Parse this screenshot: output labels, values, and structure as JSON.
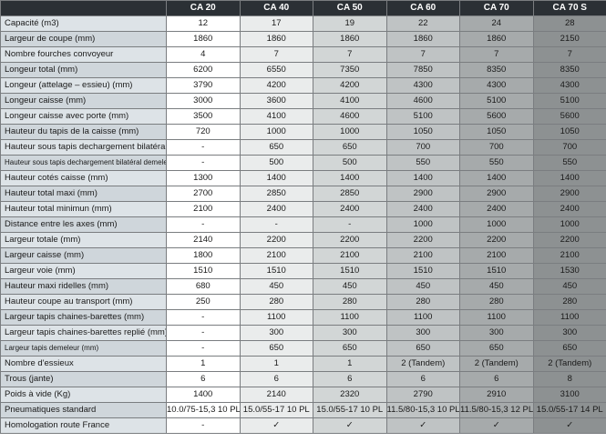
{
  "columns": [
    "CA 20",
    "CA 40",
    "CA 50",
    "CA 60",
    "CA 70",
    "CA 70 S"
  ],
  "rows": [
    {
      "label": "Capacité (m3)",
      "values": [
        "12",
        "17",
        "19",
        "22",
        "24",
        "28"
      ]
    },
    {
      "label": "Largeur de coupe (mm)",
      "values": [
        "1860",
        "1860",
        "1860",
        "1860",
        "1860",
        "2150"
      ]
    },
    {
      "label": "Nombre fourches convoyeur",
      "values": [
        "4",
        "7",
        "7",
        "7",
        "7",
        "7"
      ]
    },
    {
      "label": "Longeur total (mm)",
      "values": [
        "6200",
        "6550",
        "7350",
        "7850",
        "8350",
        "8350"
      ]
    },
    {
      "label": "Longeur (attelage – essieu) (mm)",
      "values": [
        "3790",
        "4200",
        "4200",
        "4300",
        "4300",
        "4300"
      ]
    },
    {
      "label": "Longeur caisse (mm)",
      "values": [
        "3000",
        "3600",
        "4100",
        "4600",
        "5100",
        "5100"
      ]
    },
    {
      "label": "Longeur caisse avec porte (mm)",
      "values": [
        "3500",
        "4100",
        "4600",
        "5100",
        "5600",
        "5600"
      ]
    },
    {
      "label": "Hauteur du tapis de la caisse (mm)",
      "values": [
        "720",
        "1000",
        "1000",
        "1050",
        "1050",
        "1050"
      ]
    },
    {
      "label": "Hauteur sous tapis dechargement bilatéral (mm)",
      "values": [
        "-",
        "650",
        "650",
        "700",
        "700",
        "700"
      ]
    },
    {
      "label": "Hauteur sous tapis dechargement bilatéral demeleur (mm)",
      "values": [
        "-",
        "500",
        "500",
        "550",
        "550",
        "550"
      ],
      "small": true
    },
    {
      "label": "Hauteur cotés caisse (mm)",
      "values": [
        "1300",
        "1400",
        "1400",
        "1400",
        "1400",
        "1400"
      ]
    },
    {
      "label": "Hauteur total maxi (mm)",
      "values": [
        "2700",
        "2850",
        "2850",
        "2900",
        "2900",
        "2900"
      ]
    },
    {
      "label": "Hauteur total minimun (mm)",
      "values": [
        "2100",
        "2400",
        "2400",
        "2400",
        "2400",
        "2400"
      ]
    },
    {
      "label": "Distance entre les axes (mm)",
      "values": [
        "-",
        "-",
        "-",
        "1000",
        "1000",
        "1000"
      ]
    },
    {
      "label": "Largeur totale (mm)",
      "values": [
        "2140",
        "2200",
        "2200",
        "2200",
        "2200",
        "2200"
      ]
    },
    {
      "label": "Largeur caisse (mm)",
      "values": [
        "1800",
        "2100",
        "2100",
        "2100",
        "2100",
        "2100"
      ]
    },
    {
      "label": "Largeur voie (mm)",
      "values": [
        "1510",
        "1510",
        "1510",
        "1510",
        "1510",
        "1530"
      ]
    },
    {
      "label": "Hauteur maxi ridelles (mm)",
      "values": [
        "680",
        "450",
        "450",
        "450",
        "450",
        "450"
      ]
    },
    {
      "label": "Hauteur coupe au transport (mm)",
      "values": [
        "250",
        "280",
        "280",
        "280",
        "280",
        "280"
      ]
    },
    {
      "label": "Largeur tapis chaines-barettes (mm)",
      "values": [
        "-",
        "1100",
        "1100",
        "1100",
        "1100",
        "1100"
      ]
    },
    {
      "label": "Largeur tapis chaines-barettes replié (mm)",
      "values": [
        "-",
        "300",
        "300",
        "300",
        "300",
        "300"
      ]
    },
    {
      "label": "Largeur tapis demeleur (mm)",
      "values": [
        "-",
        "650",
        "650",
        "650",
        "650",
        "650"
      ],
      "small": true
    },
    {
      "label": "Nombre d'essieux",
      "values": [
        "1",
        "1",
        "1",
        "2 (Tandem)",
        "2 (Tandem)",
        "2 (Tandem)"
      ]
    },
    {
      "label": "Trous (jante)",
      "values": [
        "6",
        "6",
        "6",
        "6",
        "6",
        "8"
      ]
    },
    {
      "label": "Poids à vide (Kg)",
      "values": [
        "1400",
        "2140",
        "2320",
        "2790",
        "2910",
        "3100"
      ]
    },
    {
      "label": "Pneumatiques standard",
      "values": [
        "10.0/75-15,3 10 PL",
        "15.0/55-17  10 PL",
        "15.0/55-17  10 PL",
        "11.5/80-15,3 10 PL",
        "11.5/80-15,3 12 PL",
        "15.0/55-17 14 PL"
      ]
    },
    {
      "label": "Homologation route France",
      "values": [
        "-",
        "✓",
        "✓",
        "✓",
        "✓",
        "✓"
      ]
    }
  ]
}
